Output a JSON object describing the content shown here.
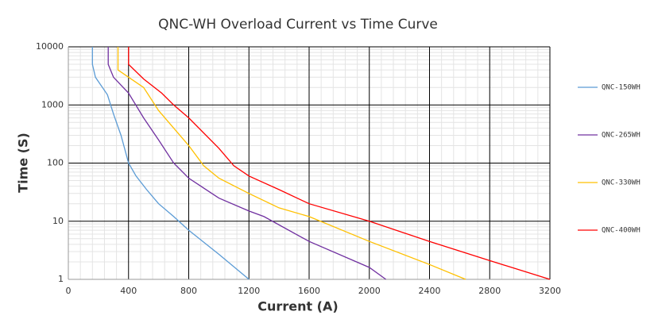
{
  "chart_data": {
    "type": "line",
    "title": "QNC-WH Overload Current  vs  Time Curve",
    "x_label": "Current (A)",
    "y_label": "Time (S)",
    "xlim": [
      0,
      3200
    ],
    "xticks": [
      0,
      400,
      800,
      1200,
      1600,
      2000,
      2400,
      2800,
      3200
    ],
    "ylim": [
      1,
      10000
    ],
    "yticks": [
      1,
      10,
      100,
      1000,
      10000
    ],
    "y_scale": "log",
    "grid": true,
    "legend": "right",
    "series": [
      {
        "name": "QNC-150WH",
        "color": "#5b9bd5",
        "x": [
          160,
          160,
          180,
          260,
          300,
          350,
          400,
          450,
          520,
          600,
          700,
          800,
          1000,
          1200
        ],
        "values": [
          10000,
          5000,
          3000,
          1500,
          700,
          300,
          100,
          60,
          35,
          20,
          12,
          7,
          2.7,
          1
        ]
      },
      {
        "name": "QNC-265WH",
        "color": "#7030a0",
        "x": [
          265,
          265,
          300,
          400,
          500,
          600,
          700,
          800,
          1000,
          1200,
          1300,
          1600,
          2000,
          2110
        ],
        "values": [
          10000,
          5000,
          3000,
          1600,
          600,
          250,
          100,
          55,
          25,
          15,
          12,
          4.5,
          1.6,
          1
        ]
      },
      {
        "name": "QNC-330WH",
        "color": "#ffc000",
        "x": [
          330,
          330,
          400,
          500,
          600,
          700,
          800,
          900,
          1000,
          1200,
          1400,
          1600,
          2000,
          2400,
          2640
        ],
        "values": [
          10000,
          4000,
          3000,
          2000,
          800,
          400,
          200,
          90,
          55,
          30,
          17,
          12,
          4.5,
          1.8,
          1
        ]
      },
      {
        "name": "QNC-400WH",
        "color": "#ff0000",
        "x": [
          400,
          400,
          500,
          620,
          700,
          800,
          1000,
          1100,
          1200,
          1400,
          1600,
          2000,
          2400,
          2800,
          3200
        ],
        "values": [
          10000,
          5000,
          2800,
          1600,
          1000,
          600,
          180,
          90,
          60,
          35,
          20,
          10,
          4.5,
          2.1,
          1
        ]
      }
    ]
  }
}
